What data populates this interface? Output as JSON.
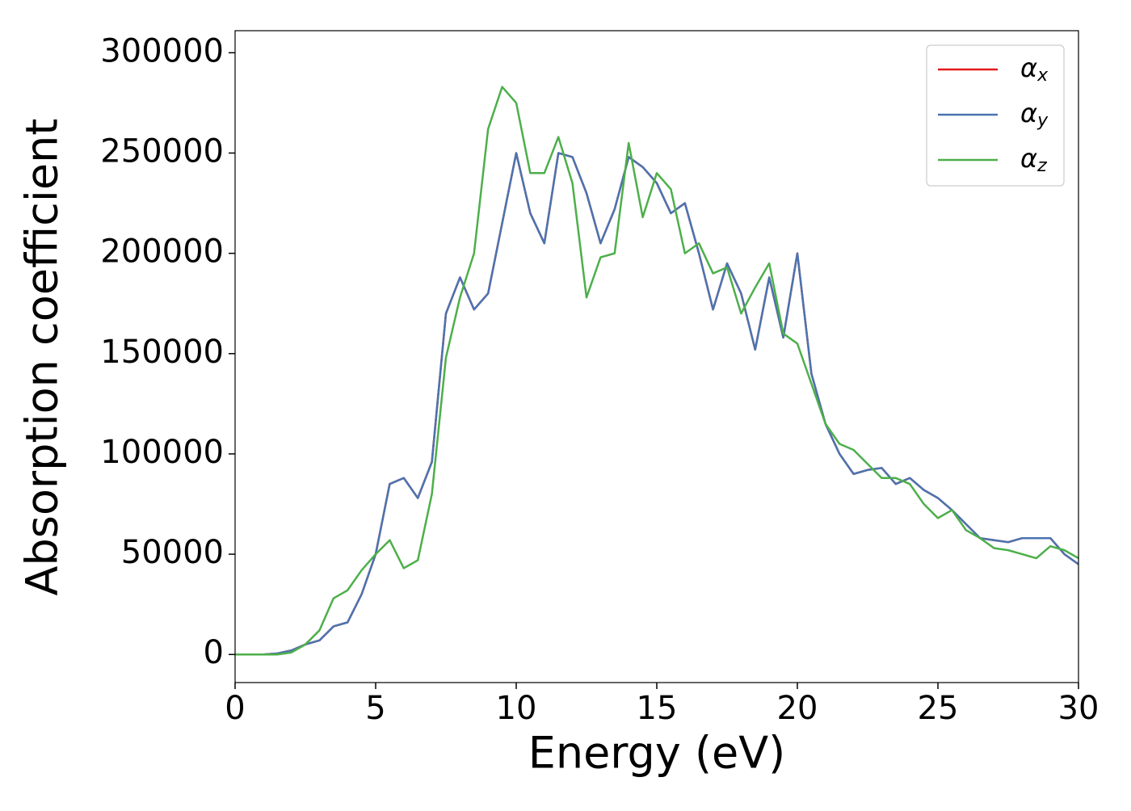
{
  "chart_data": {
    "type": "line",
    "xlabel": "Energy (eV)",
    "ylabel": "Absorption coefficient",
    "x": [
      0,
      0.5,
      1,
      1.5,
      2,
      2.5,
      3,
      3.5,
      4,
      4.5,
      5,
      5.5,
      6,
      6.5,
      7,
      7.5,
      8,
      8.5,
      9,
      9.5,
      10,
      10.5,
      11,
      11.5,
      12,
      12.5,
      13,
      13.5,
      14,
      14.5,
      15,
      15.5,
      16,
      16.5,
      17,
      17.5,
      18,
      18.5,
      19,
      19.5,
      20,
      20.5,
      21,
      21.5,
      22,
      22.5,
      23,
      23.5,
      24,
      24.5,
      25,
      25.5,
      26,
      26.5,
      27,
      27.5,
      28,
      28.5,
      29,
      29.5,
      30
    ],
    "series": [
      {
        "name": "αx",
        "color": "#e41a1c",
        "values": [
          0,
          0,
          0,
          500,
          2000,
          5000,
          7000,
          14000,
          16000,
          30000,
          50000,
          85000,
          88000,
          78000,
          96000,
          170000,
          188000,
          172000,
          180000,
          215000,
          250000,
          220000,
          205000,
          250000,
          248000,
          230000,
          205000,
          222000,
          248000,
          243000,
          235000,
          220000,
          225000,
          200000,
          172000,
          195000,
          180000,
          152000,
          188000,
          158000,
          200000,
          140000,
          115000,
          100000,
          90000,
          92000,
          93000,
          85000,
          88000,
          82000,
          78000,
          72000,
          65000,
          58000,
          57000,
          56000,
          58000,
          58000,
          58000,
          50000,
          45000
        ]
      },
      {
        "name": "αy",
        "color": "#4a74b0",
        "values": [
          0,
          0,
          0,
          500,
          2000,
          5000,
          7000,
          14000,
          16000,
          30000,
          50000,
          85000,
          88000,
          78000,
          96000,
          170000,
          188000,
          172000,
          180000,
          215000,
          250000,
          220000,
          205000,
          250000,
          248000,
          230000,
          205000,
          222000,
          248000,
          243000,
          235000,
          220000,
          225000,
          200000,
          172000,
          195000,
          180000,
          152000,
          188000,
          158000,
          200000,
          140000,
          115000,
          100000,
          90000,
          92000,
          93000,
          85000,
          88000,
          82000,
          78000,
          72000,
          65000,
          58000,
          57000,
          56000,
          58000,
          58000,
          58000,
          50000,
          45000
        ]
      },
      {
        "name": "αz",
        "color": "#4daf4a",
        "values": [
          0,
          0,
          0,
          0,
          1000,
          5000,
          12000,
          28000,
          32000,
          42000,
          50000,
          57000,
          43000,
          47000,
          80000,
          148000,
          178000,
          200000,
          262000,
          283000,
          275000,
          240000,
          240000,
          258000,
          235000,
          178000,
          198000,
          200000,
          255000,
          218000,
          240000,
          232000,
          200000,
          205000,
          190000,
          193000,
          170000,
          183000,
          195000,
          160000,
          155000,
          135000,
          115000,
          105000,
          102000,
          95000,
          88000,
          88000,
          85000,
          75000,
          68000,
          72000,
          62000,
          58000,
          53000,
          52000,
          50000,
          48000,
          54000,
          52000,
          48000
        ]
      }
    ],
    "xlim": [
      0,
      30
    ],
    "xticks": [
      0,
      5,
      10,
      15,
      20,
      25,
      30
    ],
    "ylim": [
      -14000,
      311000
    ],
    "yticks": [
      0,
      50000,
      100000,
      150000,
      200000,
      250000,
      300000
    ],
    "legend": "upper right",
    "grid": false
  }
}
